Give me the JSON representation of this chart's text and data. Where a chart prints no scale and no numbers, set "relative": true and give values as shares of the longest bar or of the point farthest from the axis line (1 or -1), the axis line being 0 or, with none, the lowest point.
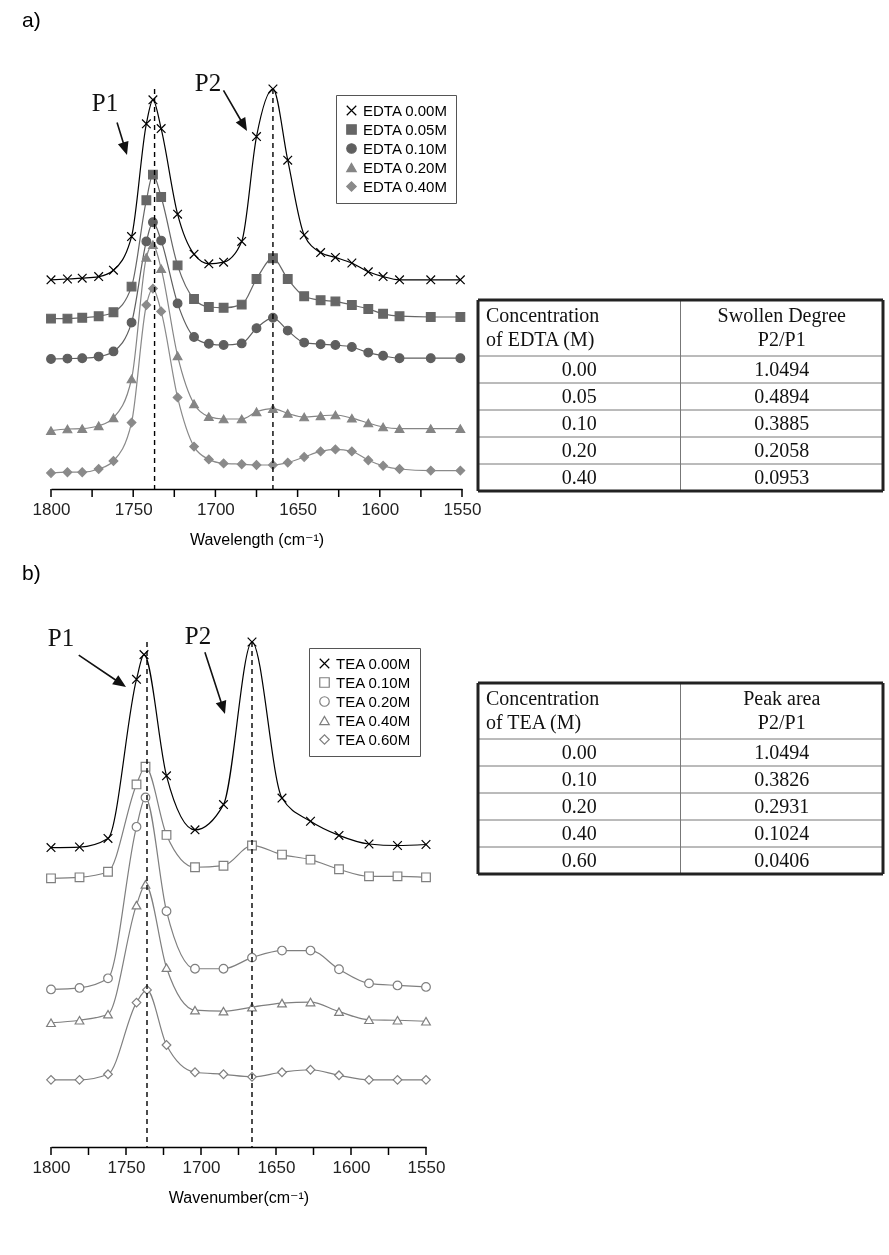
{
  "chart_data": [
    {
      "type": "line",
      "title": "a)",
      "xlabel": "Wavelength (cm⁻¹)",
      "relative": true,
      "xlim": [
        1800,
        1550
      ],
      "xticks": [
        1800,
        {
          "value": 1775,
          "label": null
        },
        1750,
        {
          "value": 1725,
          "label": null
        },
        1700,
        {
          "value": 1675,
          "label": null
        },
        1650,
        {
          "value": 1625,
          "label": null
        },
        1600,
        {
          "value": 1575,
          "label": null
        },
        1550
      ],
      "legend": "top right",
      "marker": "circle",
      "line_style": "solid",
      "ref_lines": [
        {
          "axis": "x",
          "value": 1737,
          "color": "#000000",
          "line_style": "dashed"
        },
        {
          "axis": "x",
          "value": 1665,
          "color": "#000000",
          "line_style": "dashed"
        }
      ],
      "annotations": [
        "P1",
        "P2"
      ],
      "series": [
        {
          "name": "EDTA 0.00M",
          "color": "#000000",
          "marker": "cross",
          "x": [
            1800,
            1790,
            1781,
            1771,
            1762,
            1751,
            1742,
            1738,
            1733,
            1723,
            1713,
            1704,
            1695,
            1684,
            1675,
            1665,
            1656,
            1646,
            1636,
            1627,
            1617,
            1607,
            1598,
            1588,
            1569,
            1551
          ],
          "values": [
            0.523,
            0.525,
            0.527,
            0.531,
            0.547,
            0.631,
            0.913,
            0.973,
            0.901,
            0.687,
            0.587,
            0.563,
            0.567,
            0.619,
            0.881,
            1.0,
            0.822,
            0.635,
            0.591,
            0.579,
            0.565,
            0.543,
            0.531,
            0.523,
            0.523,
            0.523
          ]
        },
        {
          "name": "EDTA 0.05M",
          "color": "#666666",
          "marker": "square",
          "x": [
            1800,
            1790,
            1781,
            1771,
            1762,
            1751,
            1742,
            1738,
            1733,
            1723,
            1713,
            1704,
            1695,
            1684,
            1675,
            1665,
            1656,
            1646,
            1636,
            1627,
            1617,
            1607,
            1598,
            1588,
            1569,
            1551
          ],
          "values": [
            0.426,
            0.426,
            0.428,
            0.432,
            0.442,
            0.506,
            0.722,
            0.786,
            0.73,
            0.559,
            0.475,
            0.455,
            0.453,
            0.461,
            0.525,
            0.577,
            0.525,
            0.482,
            0.472,
            0.469,
            0.46,
            0.45,
            0.438,
            0.432,
            0.43,
            0.43
          ]
        },
        {
          "name": "EDTA 0.10M",
          "color": "#5f5f5f",
          "marker": "circle",
          "x": [
            1800,
            1790,
            1781,
            1771,
            1762,
            1751,
            1742,
            1738,
            1733,
            1723,
            1713,
            1704,
            1695,
            1684,
            1675,
            1665,
            1656,
            1646,
            1636,
            1627,
            1617,
            1607,
            1598,
            1588,
            1569,
            1551
          ],
          "values": [
            0.325,
            0.326,
            0.327,
            0.331,
            0.344,
            0.416,
            0.619,
            0.667,
            0.621,
            0.464,
            0.38,
            0.363,
            0.36,
            0.364,
            0.402,
            0.428,
            0.396,
            0.366,
            0.362,
            0.36,
            0.355,
            0.341,
            0.333,
            0.327,
            0.327,
            0.327
          ]
        },
        {
          "name": "EDTA 0.20M",
          "color": "#858585",
          "marker": "triangle",
          "x": [
            1800,
            1790,
            1781,
            1771,
            1762,
            1751,
            1742,
            1738,
            1733,
            1723,
            1713,
            1704,
            1695,
            1684,
            1675,
            1665,
            1656,
            1646,
            1636,
            1627,
            1617,
            1607,
            1598,
            1588,
            1569,
            1551
          ],
          "values": [
            0.146,
            0.15,
            0.151,
            0.158,
            0.178,
            0.275,
            0.579,
            0.611,
            0.551,
            0.333,
            0.213,
            0.181,
            0.175,
            0.175,
            0.193,
            0.201,
            0.189,
            0.18,
            0.183,
            0.185,
            0.177,
            0.165,
            0.155,
            0.151,
            0.151,
            0.151
          ]
        },
        {
          "name": "EDTA 0.40M",
          "color": "#8a8a8a",
          "marker": "diamond",
          "x": [
            1800,
            1790,
            1781,
            1771,
            1762,
            1751,
            1742,
            1738,
            1733,
            1723,
            1713,
            1704,
            1695,
            1684,
            1675,
            1665,
            1656,
            1646,
            1636,
            1627,
            1617,
            1607,
            1598,
            1588,
            1569,
            1551
          ],
          "values": [
            0.04,
            0.042,
            0.042,
            0.05,
            0.07,
            0.166,
            0.46,
            0.501,
            0.444,
            0.229,
            0.106,
            0.074,
            0.064,
            0.062,
            0.06,
            0.06,
            0.066,
            0.08,
            0.094,
            0.099,
            0.094,
            0.072,
            0.058,
            0.05,
            0.046,
            0.046
          ]
        }
      ]
    },
    {
      "type": "other",
      "categories": [
        "Concentration\nof EDTA (M)",
        "Swollen Degree\nP2/P1"
      ],
      "annotations": [
        "0.00",
        "1.0494",
        "0.05",
        "0.4894",
        "0.10",
        "0.3885",
        "0.20",
        "0.2058",
        "0.40",
        "0.0953"
      ]
    },
    {
      "type": "line",
      "title": "b)",
      "xlabel": "Wavenumber(cm⁻¹)",
      "relative": true,
      "xlim": [
        1800,
        1550
      ],
      "xticks": [
        1800,
        {
          "value": 1775,
          "label": null
        },
        1750,
        {
          "value": 1725,
          "label": null
        },
        1700,
        {
          "value": 1675,
          "label": null
        },
        1650,
        {
          "value": 1625,
          "label": null
        },
        1600,
        {
          "value": 1575,
          "label": null
        },
        1550
      ],
      "legend": "top right",
      "marker": "circle",
      "line_style": "solid",
      "ref_lines": [
        {
          "axis": "x",
          "value": 1736,
          "color": "#000000",
          "line_style": "dashed"
        },
        {
          "axis": "x",
          "value": 1666,
          "color": "#000000",
          "line_style": "dashed"
        }
      ],
      "annotations": [
        "P1",
        "P2"
      ],
      "series": [
        {
          "name": "TEA 0.00M",
          "color": "#000000",
          "marker": "cross",
          "x": [
            1800,
            1781,
            1762,
            1743,
            1738,
            1723,
            1704,
            1685,
            1666,
            1646,
            1627,
            1608,
            1588,
            1569,
            1550
          ],
          "values": [
            0.593,
            0.594,
            0.611,
            0.926,
            0.975,
            0.735,
            0.628,
            0.678,
            1.0,
            0.691,
            0.645,
            0.617,
            0.6,
            0.597,
            0.599
          ]
        },
        {
          "name": "TEA 0.10M",
          "color": "#7f7f7f",
          "marker": "square",
          "x": [
            1800,
            1781,
            1762,
            1743,
            1737,
            1723,
            1704,
            1685,
            1666,
            1646,
            1627,
            1608,
            1588,
            1569,
            1550
          ],
          "values": [
            0.532,
            0.534,
            0.545,
            0.718,
            0.753,
            0.618,
            0.554,
            0.557,
            0.597,
            0.579,
            0.569,
            0.55,
            0.536,
            0.536,
            0.534
          ]
        },
        {
          "name": "TEA 0.20M",
          "color": "#7f7f7f",
          "marker": "circle",
          "x": [
            1800,
            1781,
            1762,
            1743,
            1737,
            1723,
            1704,
            1685,
            1666,
            1646,
            1627,
            1608,
            1588,
            1569,
            1550
          ],
          "values": [
            0.312,
            0.315,
            0.334,
            0.634,
            0.692,
            0.467,
            0.353,
            0.353,
            0.375,
            0.389,
            0.389,
            0.352,
            0.324,
            0.32,
            0.317
          ]
        },
        {
          "name": "TEA 0.40M",
          "color": "#7f7f7f",
          "marker": "triangle",
          "x": [
            1800,
            1781,
            1762,
            1743,
            1737,
            1723,
            1704,
            1685,
            1666,
            1646,
            1627,
            1608,
            1588,
            1569,
            1550
          ],
          "values": [
            0.246,
            0.251,
            0.263,
            0.479,
            0.52,
            0.355,
            0.271,
            0.269,
            0.277,
            0.285,
            0.287,
            0.268,
            0.252,
            0.251,
            0.249
          ]
        },
        {
          "name": "TEA 0.60M",
          "color": "#7f7f7f",
          "marker": "diamond",
          "x": [
            1800,
            1781,
            1762,
            1743,
            1736,
            1723,
            1704,
            1685,
            1666,
            1646,
            1627,
            1608,
            1588,
            1569,
            1550
          ],
          "values": [
            0.133,
            0.133,
            0.144,
            0.286,
            0.311,
            0.202,
            0.148,
            0.144,
            0.139,
            0.148,
            0.153,
            0.142,
            0.133,
            0.133,
            0.133
          ]
        }
      ]
    },
    {
      "type": "other",
      "categories": [
        "Concentration\nof TEA (M)",
        "Peak area\nP2/P1"
      ],
      "annotations": [
        "0.00",
        "1.0494",
        "0.10",
        "0.3826",
        "0.20",
        "0.2931",
        "0.40",
        "0.1024",
        "0.60",
        "0.0406"
      ]
    }
  ]
}
